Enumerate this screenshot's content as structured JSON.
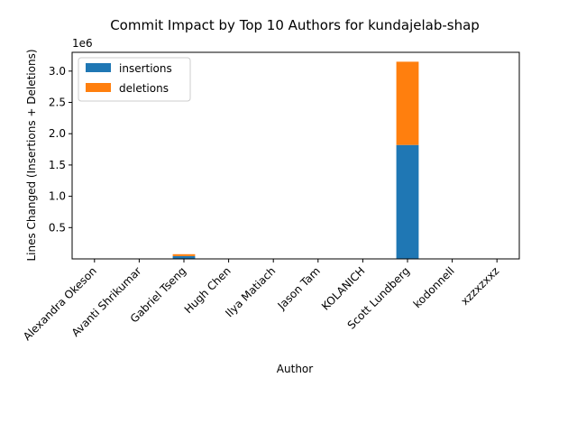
{
  "chart_data": {
    "type": "bar",
    "stacked": true,
    "title": "Commit Impact by Top 10 Authors for kundajelab-shap",
    "xlabel": "Author",
    "ylabel": "Lines Changed (Insertions + Deletions)",
    "y_offset_label": "1e6",
    "categories": [
      "Alexandra Okeson",
      "Avanti Shrikumar",
      "Gabriel Tseng",
      "Hugh Chen",
      "Ilya Matiach",
      "Jason Tam",
      "KOLANICH",
      "Scott Lundberg",
      "kodonnell",
      "xzzxzxxz"
    ],
    "series": [
      {
        "name": "insertions",
        "color": "#1f77b4",
        "values": [
          200,
          300,
          45000,
          500,
          300,
          200,
          150,
          1820000,
          100,
          50
        ]
      },
      {
        "name": "deletions",
        "color": "#ff7f0e",
        "values": [
          100,
          150,
          30000,
          200,
          150,
          100,
          80,
          1330000,
          50,
          20
        ]
      }
    ],
    "ylim": [
      0,
      3300000
    ],
    "yticks": [
      0.5,
      1.0,
      1.5,
      2.0,
      2.5,
      3.0
    ],
    "ytick_labels": [
      "0.5",
      "1.0",
      "1.5",
      "2.0",
      "2.5",
      "3.0"
    ],
    "legend_position": "upper-left",
    "grid": false
  }
}
